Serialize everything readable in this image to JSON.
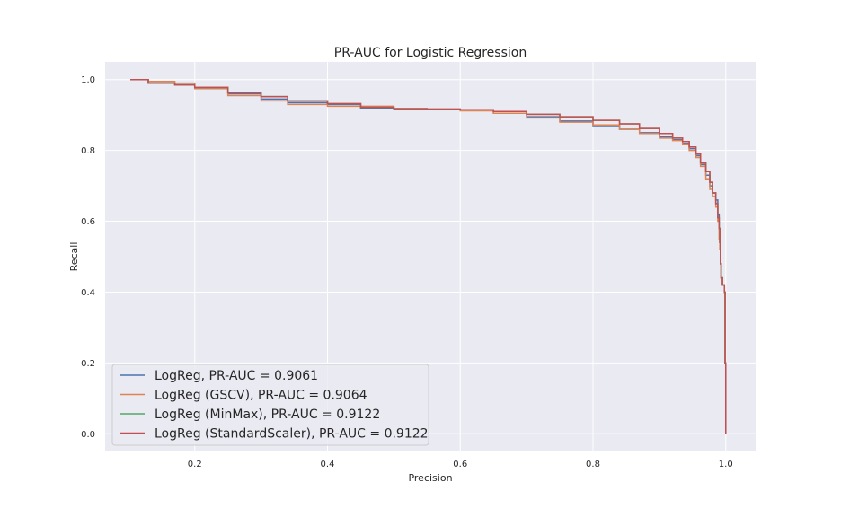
{
  "chart_data": {
    "type": "line",
    "title": "PR-AUC for Logistic Regression",
    "xlabel": "Precision",
    "ylabel": "Recall",
    "xlim": [
      0.065,
      1.045
    ],
    "ylim": [
      -0.05,
      1.05
    ],
    "xticks": [
      0.2,
      0.4,
      0.6,
      0.8,
      1.0
    ],
    "xtick_labels": [
      "0.2",
      "0.4",
      "0.6",
      "0.8",
      "1.0"
    ],
    "yticks": [
      0.0,
      0.2,
      0.4,
      0.6,
      0.8,
      1.0
    ],
    "ytick_labels": [
      "0.0",
      "0.2",
      "0.4",
      "0.6",
      "0.8",
      "1.0"
    ],
    "grid": true,
    "legend_position": "lower-left",
    "background": "#eaeaf2",
    "series": [
      {
        "name": "LogReg, PR-AUC = 0.9061",
        "color": "#4c72b0",
        "points": [
          [
            0.103,
            1.0
          ],
          [
            0.13,
            0.99
          ],
          [
            0.17,
            0.985
          ],
          [
            0.2,
            0.975
          ],
          [
            0.25,
            0.96
          ],
          [
            0.3,
            0.945
          ],
          [
            0.34,
            0.935
          ],
          [
            0.4,
            0.93
          ],
          [
            0.45,
            0.92
          ],
          [
            0.5,
            0.918
          ],
          [
            0.55,
            0.916
          ],
          [
            0.6,
            0.913
          ],
          [
            0.65,
            0.905
          ],
          [
            0.7,
            0.895
          ],
          [
            0.75,
            0.883
          ],
          [
            0.8,
            0.87
          ],
          [
            0.84,
            0.86
          ],
          [
            0.87,
            0.85
          ],
          [
            0.9,
            0.838
          ],
          [
            0.92,
            0.83
          ],
          [
            0.935,
            0.82
          ],
          [
            0.945,
            0.805
          ],
          [
            0.955,
            0.785
          ],
          [
            0.962,
            0.76
          ],
          [
            0.97,
            0.73
          ],
          [
            0.976,
            0.7
          ],
          [
            0.98,
            0.68
          ],
          [
            0.985,
            0.66
          ],
          [
            0.988,
            0.62
          ],
          [
            0.99,
            0.58
          ],
          [
            0.991,
            0.54
          ],
          [
            0.992,
            0.48
          ],
          [
            0.993,
            0.44
          ],
          [
            0.995,
            0.42
          ],
          [
            0.998,
            0.4
          ],
          [
            0.999,
            0.2
          ],
          [
            1.0,
            0.0
          ]
        ]
      },
      {
        "name": "LogReg (GSCV), PR-AUC = 0.9064",
        "color": "#dd8452",
        "points": [
          [
            0.103,
            1.0
          ],
          [
            0.13,
            0.995
          ],
          [
            0.17,
            0.99
          ],
          [
            0.2,
            0.975
          ],
          [
            0.25,
            0.955
          ],
          [
            0.3,
            0.94
          ],
          [
            0.34,
            0.93
          ],
          [
            0.4,
            0.925
          ],
          [
            0.45,
            0.925
          ],
          [
            0.5,
            0.918
          ],
          [
            0.55,
            0.915
          ],
          [
            0.6,
            0.912
          ],
          [
            0.65,
            0.905
          ],
          [
            0.7,
            0.892
          ],
          [
            0.75,
            0.88
          ],
          [
            0.8,
            0.872
          ],
          [
            0.84,
            0.86
          ],
          [
            0.87,
            0.848
          ],
          [
            0.9,
            0.835
          ],
          [
            0.92,
            0.828
          ],
          [
            0.935,
            0.818
          ],
          [
            0.945,
            0.8
          ],
          [
            0.955,
            0.78
          ],
          [
            0.962,
            0.755
          ],
          [
            0.97,
            0.72
          ],
          [
            0.976,
            0.69
          ],
          [
            0.98,
            0.67
          ],
          [
            0.985,
            0.64
          ],
          [
            0.988,
            0.6
          ],
          [
            0.99,
            0.55
          ],
          [
            0.991,
            0.52
          ],
          [
            0.992,
            0.48
          ],
          [
            0.993,
            0.44
          ],
          [
            0.995,
            0.42
          ],
          [
            0.998,
            0.4
          ],
          [
            0.999,
            0.2
          ],
          [
            1.0,
            0.0
          ]
        ]
      },
      {
        "name": "LogReg (MinMax), PR-AUC = 0.9122",
        "color": "#55a868",
        "points": [
          [
            0.103,
            1.0
          ],
          [
            0.13,
            0.99
          ],
          [
            0.17,
            0.985
          ],
          [
            0.2,
            0.978
          ],
          [
            0.25,
            0.963
          ],
          [
            0.3,
            0.952
          ],
          [
            0.34,
            0.94
          ],
          [
            0.4,
            0.932
          ],
          [
            0.45,
            0.922
          ],
          [
            0.5,
            0.918
          ],
          [
            0.55,
            0.917
          ],
          [
            0.6,
            0.915
          ],
          [
            0.65,
            0.91
          ],
          [
            0.7,
            0.902
          ],
          [
            0.75,
            0.895
          ],
          [
            0.8,
            0.885
          ],
          [
            0.84,
            0.875
          ],
          [
            0.87,
            0.862
          ],
          [
            0.9,
            0.848
          ],
          [
            0.92,
            0.835
          ],
          [
            0.935,
            0.825
          ],
          [
            0.945,
            0.81
          ],
          [
            0.955,
            0.79
          ],
          [
            0.962,
            0.765
          ],
          [
            0.97,
            0.74
          ],
          [
            0.976,
            0.71
          ],
          [
            0.98,
            0.68
          ],
          [
            0.985,
            0.65
          ],
          [
            0.988,
            0.61
          ],
          [
            0.99,
            0.58
          ],
          [
            0.991,
            0.54
          ],
          [
            0.992,
            0.48
          ],
          [
            0.993,
            0.44
          ],
          [
            0.995,
            0.42
          ],
          [
            0.998,
            0.4
          ],
          [
            0.999,
            0.2
          ],
          [
            1.0,
            0.0
          ]
        ]
      },
      {
        "name": "LogReg (StandardScaler), PR-AUC = 0.9122",
        "color": "#c44e52",
        "points": [
          [
            0.103,
            1.0
          ],
          [
            0.13,
            0.99
          ],
          [
            0.17,
            0.985
          ],
          [
            0.2,
            0.978
          ],
          [
            0.25,
            0.963
          ],
          [
            0.3,
            0.952
          ],
          [
            0.34,
            0.94
          ],
          [
            0.4,
            0.932
          ],
          [
            0.45,
            0.922
          ],
          [
            0.5,
            0.918
          ],
          [
            0.55,
            0.917
          ],
          [
            0.6,
            0.915
          ],
          [
            0.65,
            0.91
          ],
          [
            0.7,
            0.902
          ],
          [
            0.75,
            0.895
          ],
          [
            0.8,
            0.885
          ],
          [
            0.84,
            0.875
          ],
          [
            0.87,
            0.862
          ],
          [
            0.9,
            0.848
          ],
          [
            0.92,
            0.835
          ],
          [
            0.935,
            0.825
          ],
          [
            0.945,
            0.81
          ],
          [
            0.955,
            0.79
          ],
          [
            0.962,
            0.765
          ],
          [
            0.97,
            0.74
          ],
          [
            0.976,
            0.71
          ],
          [
            0.98,
            0.68
          ],
          [
            0.985,
            0.65
          ],
          [
            0.988,
            0.61
          ],
          [
            0.99,
            0.58
          ],
          [
            0.991,
            0.54
          ],
          [
            0.992,
            0.48
          ],
          [
            0.993,
            0.44
          ],
          [
            0.995,
            0.42
          ],
          [
            0.998,
            0.4
          ],
          [
            0.999,
            0.2
          ],
          [
            1.0,
            0.0
          ]
        ]
      }
    ]
  }
}
